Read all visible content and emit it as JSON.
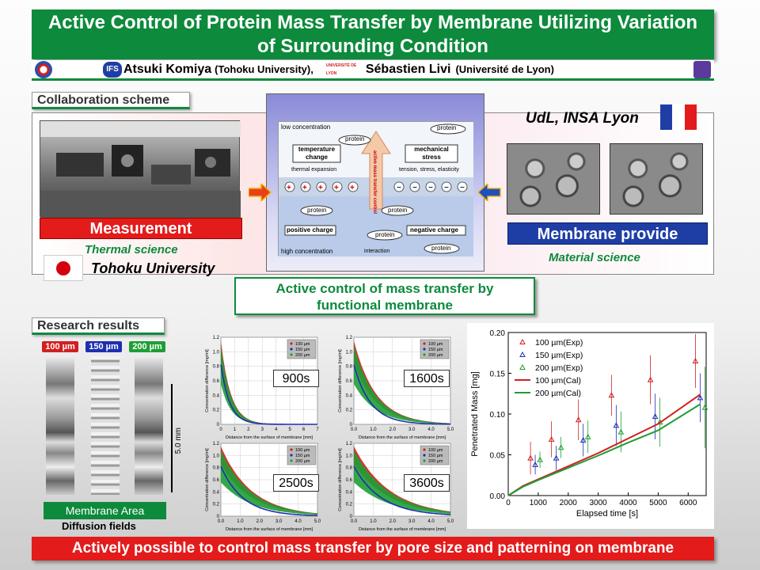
{
  "title": {
    "line1": "Active Control of Protein Mass Transfer by Membrane Utilizing Variation",
    "line2": "of Surrounding Condition"
  },
  "authors": {
    "a1_name": "Atsuki Komiya",
    "a1_aff": "(Tohoku University),",
    "a2_name": "Sébastien Livi",
    "a2_aff": "(Université de Lyon)",
    "ifs_logo": "IFS",
    "lyon_logo": "UNIVERSITÉ DE LYON"
  },
  "sections": {
    "collab": "Collaboration scheme",
    "results": "Research results"
  },
  "collab": {
    "measurement": "Measurement",
    "thermal": "Thermal science",
    "tohoku": "Tohoku University",
    "udl": "UdL, INSA Lyon",
    "membrane": "Membrane provide",
    "material": "Material science",
    "active_l1": "Active control of mass transfer by",
    "active_l2": "functional membrane"
  },
  "diagram": {
    "low": "low concentration",
    "high": "high concentration",
    "protein": "protein",
    "temp_l1": "temperature",
    "temp_l2": "change",
    "mech_l1": "mechanical",
    "mech_l2": "stress",
    "thermal_exp": "thermal expansion",
    "tension": "tension, stress, elasticity",
    "pos": "positive charge",
    "neg": "negative charge",
    "interaction": "interaction",
    "center_l1": "active mass",
    "center_l2": "transfer control"
  },
  "results": {
    "pill1": "100 µm",
    "pill2": "150 µm",
    "pill3": "200 µm",
    "scale": "5.0 mm",
    "membrane_area": "Membrane Area",
    "diffusion": "Diffusion fields"
  },
  "colors": {
    "green": "#0d8a3c",
    "red": "#e31b1b",
    "blue": "#1f3ea5",
    "p100": "#d21f1f",
    "p150": "#1d2fb0",
    "p200": "#1e9e35"
  },
  "small_charts": [
    {
      "label": "900s",
      "xmax": 7,
      "xticks": [
        "0",
        "1",
        "2",
        "3",
        "4",
        "5",
        "6",
        "7"
      ]
    },
    {
      "label": "1600s",
      "xmax": 5,
      "xticks": [
        "0.0",
        "1.0",
        "2.0",
        "3.0",
        "4.0",
        "5.0"
      ]
    },
    {
      "label": "2500s",
      "xmax": 5,
      "xticks": [
        "0.0",
        "1.0",
        "2.0",
        "3.0",
        "4.0",
        "5.0"
      ]
    },
    {
      "label": "3600s",
      "xmax": 5,
      "xticks": [
        "0.0",
        "1.0",
        "2.0",
        "3.0",
        "4.0",
        "5.0"
      ]
    }
  ],
  "small_chart_text": {
    "ylabel": "Concentration difference [mg/ml]",
    "xlabel": "Distance from the surface of membrane [mm]",
    "yticks": [
      "0",
      "0.2",
      "0.4",
      "0.6",
      "0.8",
      "1.0",
      "1.2"
    ],
    "leg": [
      "100 µm",
      "150 µm",
      "200 µm"
    ]
  },
  "chart_data": {
    "type": "scatter",
    "xlabel": "Elapsed time [s]",
    "ylabel": "Penetrated Mass [mg]",
    "xlim": [
      0,
      6600
    ],
    "ylim": [
      0,
      0.2
    ],
    "xticks": [
      0,
      1000,
      2000,
      3000,
      4000,
      5000,
      6000
    ],
    "yticks": [
      0.0,
      0.05,
      0.1,
      0.15,
      0.2
    ],
    "ytick_labels": [
      "0.00",
      "0.05",
      "0.10",
      "0.15",
      "0.20"
    ],
    "legend_position": "top-left",
    "series": [
      {
        "name": "100 µm(Exp)",
        "kind": "points",
        "color": "#d21f1f",
        "x": [
          900,
          1600,
          2500,
          3600,
          4900,
          6400
        ],
        "y": [
          0.046,
          0.069,
          0.093,
          0.123,
          0.142,
          0.165
        ],
        "err": [
          0.02,
          0.022,
          0.025,
          0.025,
          0.03,
          0.033
        ]
      },
      {
        "name": "150 µm(Exp)",
        "kind": "points",
        "color": "#1d2fb0",
        "x": [
          900,
          1600,
          2500,
          3600,
          4900,
          6400
        ],
        "y": [
          0.038,
          0.046,
          0.068,
          0.086,
          0.097,
          0.12
        ],
        "err": [
          0.012,
          0.015,
          0.02,
          0.025,
          0.028,
          0.03
        ]
      },
      {
        "name": "200 µm(Exp)",
        "kind": "points",
        "color": "#1e9e35",
        "x": [
          900,
          1600,
          2500,
          3600,
          4900,
          6400
        ],
        "y": [
          0.044,
          0.059,
          0.072,
          0.078,
          0.09,
          0.108
        ],
        "err": [
          0.01,
          0.013,
          0.02,
          0.025,
          0.03,
          0.05
        ]
      },
      {
        "name": "100 µm(Cal)",
        "kind": "line",
        "color": "#d21f1f",
        "x": [
          0,
          500,
          1000,
          2000,
          3000,
          4000,
          5000,
          6400
        ],
        "y": [
          0,
          0.012,
          0.02,
          0.036,
          0.052,
          0.07,
          0.088,
          0.124
        ]
      },
      {
        "name": "200 µm(Cal)",
        "kind": "line",
        "color": "#1e9e35",
        "x": [
          0,
          500,
          1000,
          2000,
          3000,
          4000,
          5000,
          6400
        ],
        "y": [
          0,
          0.011,
          0.019,
          0.034,
          0.049,
          0.065,
          0.08,
          0.112
        ]
      }
    ]
  },
  "bottom": "Actively possible to control mass transfer by pore size and patterning on membrane"
}
